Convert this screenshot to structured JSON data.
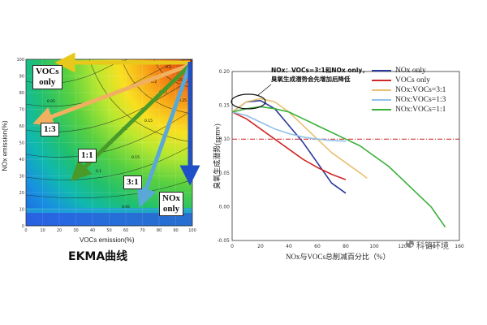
{
  "ekma": {
    "title": "EKMA曲线",
    "xlabel": "VOCs emission(%)",
    "ylabel": "NOx emission(%)",
    "x_ticks": [
      "0",
      "10",
      "20",
      "30",
      "40",
      "50",
      "60",
      "70",
      "80",
      "90",
      "100"
    ],
    "y_ticks": [
      "0",
      "10",
      "20",
      "30",
      "40",
      "50",
      "60",
      "70",
      "80",
      "90",
      "100"
    ],
    "contour_labels": [
      "0.05",
      "0.1",
      "0.1",
      "0.15",
      "0.15",
      "0.15",
      "0.2",
      "0.2",
      "0.25",
      "0.25",
      "0.05"
    ],
    "arrow_labels": {
      "vocs_only": [
        "VOCs",
        "only"
      ],
      "r13": "1:3",
      "r11": "1:1",
      "r31": "3:1",
      "nox_only": [
        "NOx",
        "only"
      ]
    },
    "colors": {
      "vocs_only": "#e8c81a",
      "r13": "#f0b060",
      "r11": "#4a9a2a",
      "r31": "#5aa8d8",
      "nox_only": "#2050c8"
    }
  },
  "chart_data": {
    "type": "line",
    "xlabel": "NOx与VOCs总削减百分比（%）",
    "ylabel": "臭氧生成潜势(ppmv)",
    "xlim": [
      0,
      160
    ],
    "ylim": [
      -0.05,
      0.2
    ],
    "x_ticks": [
      "0",
      "20",
      "40",
      "60",
      "80",
      "100",
      "120",
      "140",
      "160"
    ],
    "y_ticks": [
      "-0.05",
      "0.00",
      "0.05",
      "0.10",
      "0.15",
      "0.20"
    ],
    "reference_line": {
      "y": 0.1,
      "style": "dash-dot",
      "color": "#d02020"
    },
    "series": [
      {
        "name": "NOx only",
        "color": "#2a3a9a",
        "x": [
          0,
          10,
          20,
          30,
          40,
          50,
          60,
          70,
          80
        ],
        "y": [
          0.14,
          0.155,
          0.157,
          0.145,
          0.12,
          0.095,
          0.065,
          0.035,
          0.02
        ]
      },
      {
        "name": "VOCs only",
        "color": "#d02828",
        "x": [
          0,
          10,
          20,
          30,
          40,
          50,
          60,
          70,
          80
        ],
        "y": [
          0.14,
          0.13,
          0.115,
          0.1,
          0.085,
          0.07,
          0.058,
          0.048,
          0.04
        ]
      },
      {
        "name": "NOx:VOCs=3:1",
        "color": "#e8c070",
        "x": [
          0,
          10,
          20,
          30,
          40,
          50,
          60,
          70,
          80,
          90,
          95
        ],
        "y": [
          0.14,
          0.155,
          0.16,
          0.155,
          0.14,
          0.12,
          0.1,
          0.08,
          0.065,
          0.05,
          0.042
        ]
      },
      {
        "name": "NOx:VOCs=1:3",
        "color": "#90c0e8",
        "x": [
          0,
          10,
          20,
          30,
          40,
          50,
          60,
          70,
          80
        ],
        "y": [
          0.14,
          0.135,
          0.125,
          0.115,
          0.108,
          0.103,
          0.1,
          0.098,
          0.097
        ]
      },
      {
        "name": "NOx:VOCs=1:1",
        "color": "#38b038",
        "x": [
          0,
          10,
          20,
          30,
          40,
          50,
          60,
          70,
          80,
          90,
          100,
          110,
          120,
          130,
          140,
          150
        ],
        "y": [
          0.14,
          0.145,
          0.148,
          0.145,
          0.14,
          0.13,
          0.12,
          0.11,
          0.1,
          0.09,
          0.075,
          0.06,
          0.04,
          0.02,
          0.0,
          -0.03
        ]
      }
    ],
    "annotation": [
      "NOx：VOCs=3:1和NOx only，",
      "臭氧生成潜势会先增加后降低"
    ]
  },
  "watermark": "科铬环境"
}
